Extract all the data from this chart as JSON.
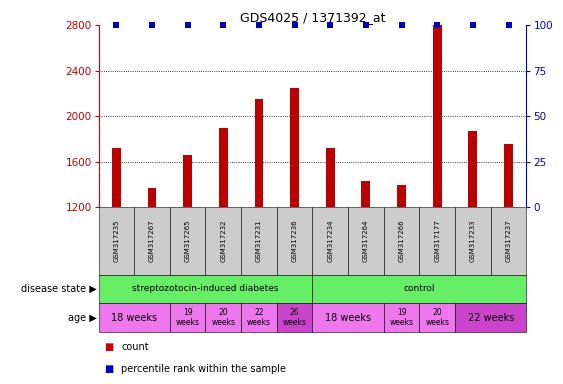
{
  "title": "GDS4025 / 1371392_at",
  "samples": [
    "GSM317235",
    "GSM317267",
    "GSM317265",
    "GSM317232",
    "GSM317231",
    "GSM317236",
    "GSM317234",
    "GSM317264",
    "GSM317266",
    "GSM317177",
    "GSM317233",
    "GSM317237"
  ],
  "counts": [
    1720,
    1370,
    1660,
    1900,
    2150,
    2250,
    1720,
    1430,
    1400,
    2800,
    1870,
    1760
  ],
  "percentile_ranks": [
    100,
    100,
    100,
    100,
    100,
    100,
    100,
    100,
    100,
    100,
    100,
    100
  ],
  "ylim_left": [
    1200,
    2800
  ],
  "ylim_right": [
    0,
    100
  ],
  "yticks_left": [
    1200,
    1600,
    2000,
    2400,
    2800
  ],
  "yticks_right": [
    0,
    25,
    50,
    75,
    100
  ],
  "bar_color": "#bb0000",
  "percentile_color": "#0000bb",
  "grid_color": "#000000",
  "bg_color": "#ffffff",
  "tick_label_color_left": "#cc0000",
  "tick_label_color_right": "#0000cc",
  "sample_box_color": "#cccccc",
  "legend_count_color": "#cc0000",
  "legend_pct_color": "#0000cc",
  "left_label_color": "#888888",
  "ds_groups": [
    {
      "label": "streptozotocin-induced diabetes",
      "start": 0,
      "end": 6,
      "color": "#66ee66"
    },
    {
      "label": "control",
      "start": 6,
      "end": 12,
      "color": "#66ee66"
    }
  ],
  "age_groups": [
    {
      "label": "18 weeks",
      "start": 0,
      "end": 2,
      "color": "#ee77ee",
      "fs": 7
    },
    {
      "label": "19\nweeks",
      "start": 2,
      "end": 3,
      "color": "#ee77ee",
      "fs": 5.5
    },
    {
      "label": "20\nweeks",
      "start": 3,
      "end": 4,
      "color": "#ee77ee",
      "fs": 5.5
    },
    {
      "label": "22\nweeks",
      "start": 4,
      "end": 5,
      "color": "#ee77ee",
      "fs": 5.5
    },
    {
      "label": "26\nweeks",
      "start": 5,
      "end": 6,
      "color": "#cc44cc",
      "fs": 5.5
    },
    {
      "label": "18 weeks",
      "start": 6,
      "end": 8,
      "color": "#ee77ee",
      "fs": 7
    },
    {
      "label": "19\nweeks",
      "start": 8,
      "end": 9,
      "color": "#ee77ee",
      "fs": 5.5
    },
    {
      "label": "20\nweeks",
      "start": 9,
      "end": 10,
      "color": "#ee77ee",
      "fs": 5.5
    },
    {
      "label": "22 weeks",
      "start": 10,
      "end": 12,
      "color": "#cc44cc",
      "fs": 7
    }
  ]
}
